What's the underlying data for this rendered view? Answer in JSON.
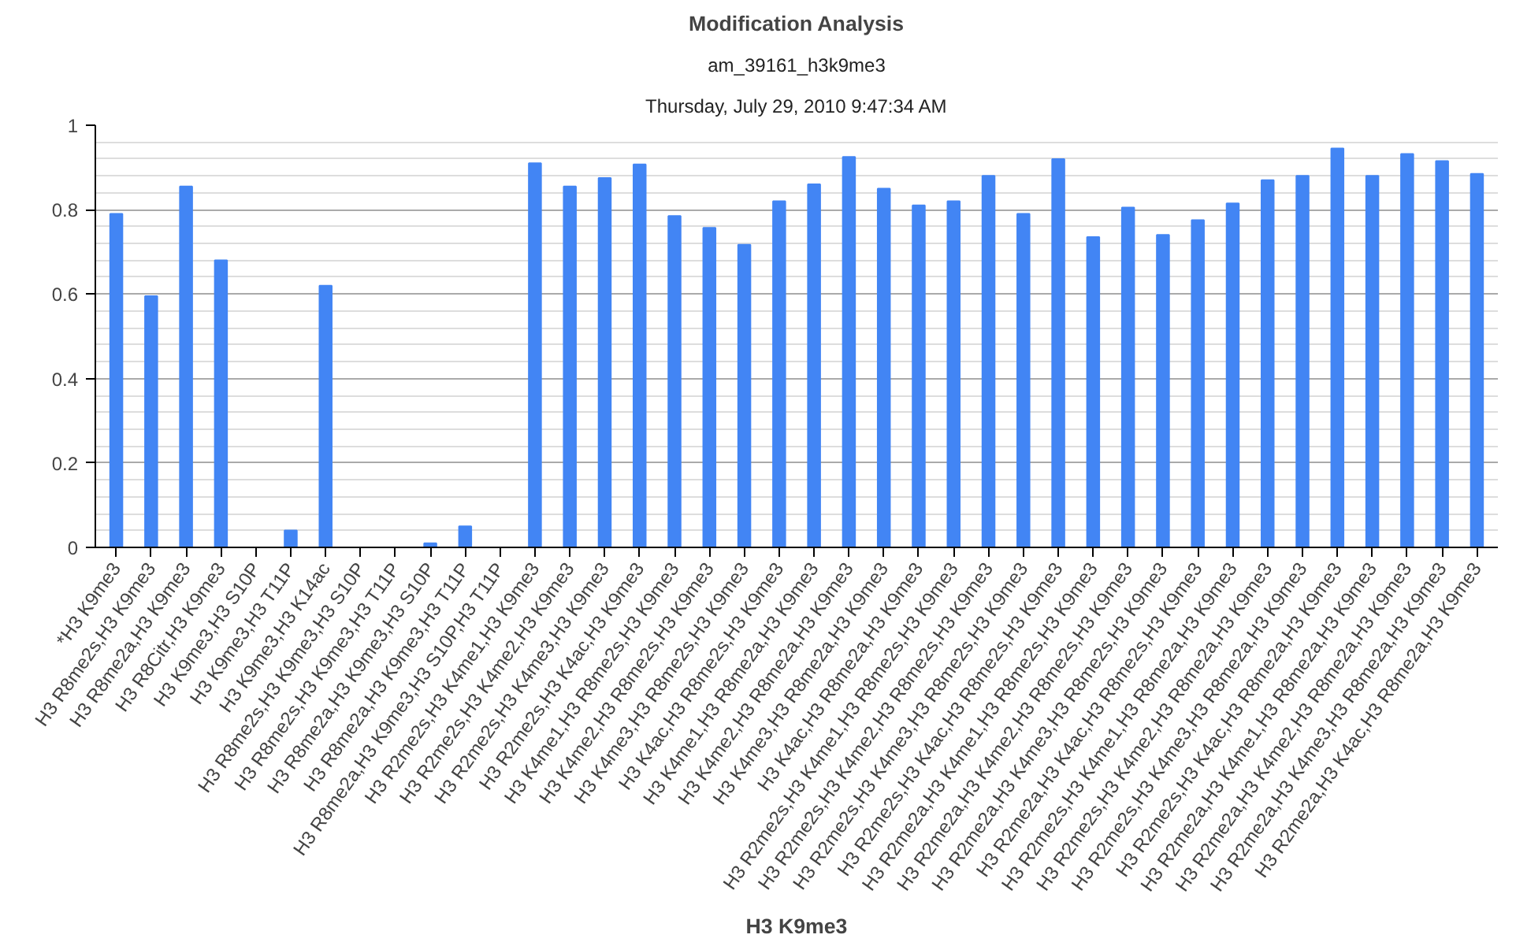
{
  "chart_data": {
    "type": "bar",
    "title": "Modification Analysis",
    "subtitle": "am_39161_h3k9me3",
    "annotations": [
      "Thursday, July 29, 2010 9:47:34 AM"
    ],
    "xlabel": "H3 K9me3",
    "categories": [
      "*H3 K9me3",
      "H3 R8me2s,H3 K9me3",
      "H3 R8me2a,H3 K9me3",
      "H3 R8Citr,H3 K9me3",
      "H3 K9me3,H3 S10P",
      "H3 K9me3,H3 T11P",
      "H3 K9me3,H3 K14ac",
      "H3 R8me2s,H3 K9me3,H3 S10P",
      "H3 R8me2s,H3 K9me3,H3 T11P",
      "H3 R8me2a,H3 K9me3,H3 S10P",
      "H3 R8me2a,H3 K9me3,H3 T11P",
      "H3 R8me2a,H3 K9me3,H3 S10P,H3 T11P",
      "H3 R2me2s,H3 K4me1,H3 K9me3",
      "H3 R2me2s,H3 K4me2,H3 K9me3",
      "H3 R2me2s,H3 K4me3,H3 K9me3",
      "H3 R2me2s,H3 K4ac,H3 K9me3",
      "H3 K4me1,H3 R8me2s,H3 K9me3",
      "H3 K4me2,H3 R8me2s,H3 K9me3",
      "H3 K4me3,H3 R8me2s,H3 K9me3",
      "H3 K4ac,H3 R8me2s,H3 K9me3",
      "H3 K4me1,H3 R8me2a,H3 K9me3",
      "H3 K4me2,H3 R8me2a,H3 K9me3",
      "H3 K4me3,H3 R8me2a,H3 K9me3",
      "H3 K4ac,H3 R8me2a,H3 K9me3",
      "H3 R2me2s,H3 K4me1,H3 R8me2s,H3 K9me3",
      "H3 R2me2s,H3 K4me2,H3 R8me2s,H3 K9me3",
      "H3 R2me2s,H3 K4me3,H3 R8me2s,H3 K9me3",
      "H3 R2me2s,H3 K4ac,H3 R8me2s,H3 K9me3",
      "H3 R2me2a,H3 K4me1,H3 R8me2s,H3 K9me3",
      "H3 R2me2a,H3 K4me2,H3 R8me2s,H3 K9me3",
      "H3 R2me2a,H3 K4me3,H3 R8me2s,H3 K9me3",
      "H3 R2me2a,H3 K4ac,H3 R8me2s,H3 K9me3",
      "H3 R2me2s,H3 K4me1,H3 R8me2a,H3 K9me3",
      "H3 R2me2s,H3 K4me2,H3 R8me2a,H3 K9me3",
      "H3 R2me2s,H3 K4me3,H3 R8me2a,H3 K9me3",
      "H3 R2me2s,H3 K4ac,H3 R8me2a,H3 K9me3",
      "H3 R2me2a,H3 K4me1,H3 R8me2a,H3 K9me3",
      "H3 R2me2a,H3 K4me2,H3 R8me2a,H3 K9me3",
      "H3 R2me2a,H3 K4me3,H3 R8me2a,H3 K9me3",
      "H3 R2me2a,H3 K4ac,H3 R8me2a,H3 K9me3"
    ],
    "values": [
      0.79,
      0.595,
      0.855,
      0.68,
      0,
      0.04,
      0.62,
      0,
      0,
      0.01,
      0.05,
      0,
      0.91,
      0.855,
      0.875,
      0.907,
      0.785,
      0.757,
      0.717,
      0.82,
      0.86,
      0.925,
      0.85,
      0.81,
      0.82,
      0.88,
      0.79,
      0.92,
      0.735,
      0.805,
      0.74,
      0.775,
      0.815,
      0.87,
      0.88,
      0.945,
      0.88,
      0.932,
      0.915,
      0.885
    ],
    "color": "#4285f4",
    "ylim": [
      0,
      1
    ],
    "yticks": [
      0,
      0.2,
      0.4,
      0.6,
      0.8,
      1
    ],
    "grid": "y"
  }
}
